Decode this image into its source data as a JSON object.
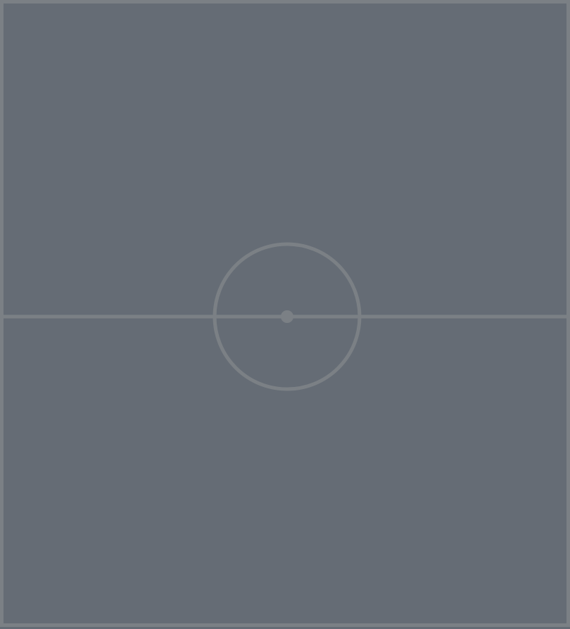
{
  "pitch": {
    "surface_color": "#656c75",
    "line_color": "#7b8085",
    "markings": [
      "outer-boundary",
      "halfway-line",
      "center-circle",
      "center-spot"
    ]
  }
}
